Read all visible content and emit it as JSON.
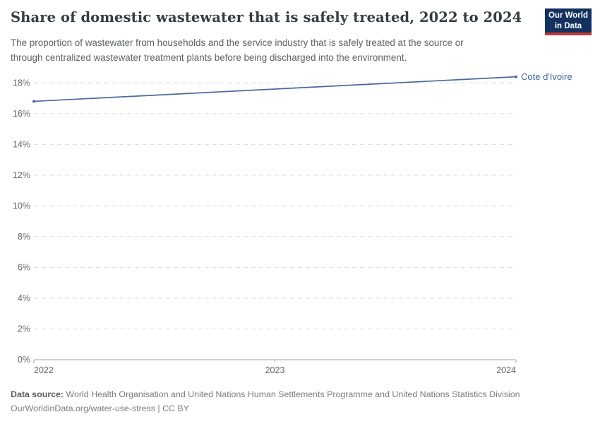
{
  "header": {
    "title": "Share of domestic wastewater that is safely treated, 2022 to 2024",
    "subtitle_lines": [
      "The proportion of wastewater from households and the service industry that is safely treated at the source or",
      "through centralized wastewater treatment plants before being discharged into the environment."
    ],
    "logo": {
      "line1": "Our World",
      "line2": "in Data"
    }
  },
  "chart_data": {
    "type": "line",
    "title": "Share of domestic wastewater that is safely treated, 2022 to 2024",
    "series": [
      {
        "name": "Cote d'Ivoire",
        "x": [
          2022,
          2023,
          2024
        ],
        "values": [
          16.8,
          17.6,
          18.4
        ],
        "color": "#4a699c"
      }
    ],
    "xlabel": "",
    "ylabel": "",
    "xlim": [
      2022,
      2024
    ],
    "ylim": [
      0,
      18
    ],
    "x_ticks": [
      2022,
      2023,
      2024
    ],
    "y_ticks": [
      0,
      2,
      4,
      6,
      8,
      10,
      12,
      14,
      16,
      18
    ],
    "y_tick_suffix": "%",
    "grid": "horizontal-dashed",
    "legend": "end-of-line-label"
  },
  "footer": {
    "source_label": "Data source:",
    "source_text": " World Health Organisation and United Nations Human Settlements Programme and United Nations Statistics Division",
    "license_line": "OurWorldinData.org/water-use-stress | CC BY"
  },
  "colors": {
    "line": "#4a699c",
    "entity_label": "#3d649d",
    "gridline": "#dcdcdc",
    "axis": "#a3a3a3",
    "tick_label": "#666666",
    "title": "#373d42",
    "subtitle": "#5d6266",
    "logo_bg": "#12315e",
    "logo_red": "#bf3734"
  }
}
